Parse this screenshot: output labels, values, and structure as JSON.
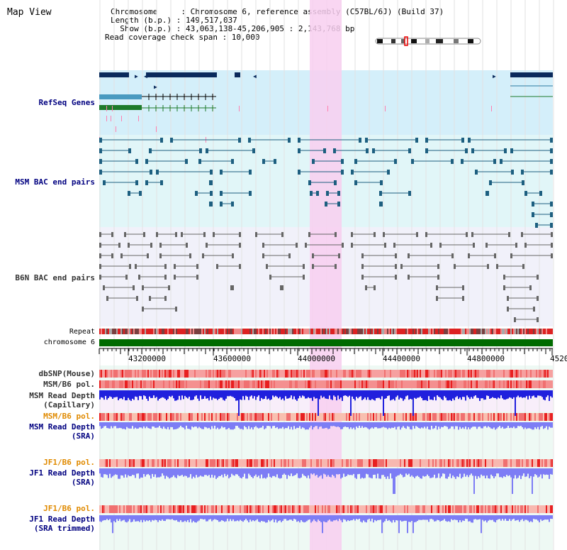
{
  "header": {
    "view_title": "Map View",
    "info_lines": [
      "Chromosome     : Chromosome 6, reference assembly (C57BL/6J) (Build 37)",
      "Length (b.p.) : 149,517,037",
      "  Show (b.p.) : 43,063,138-45,206,905 : 2,143,768 bp",
      "Read coverage check span : 10,000"
    ]
  },
  "tracks": {
    "refseq": "RefSeq Genes",
    "msm_bac": "MSM BAC end pairs",
    "b6n_bac": "B6N BAC end pairs",
    "repeat": "Repeat",
    "chromosome": "chromosome 6",
    "dbsnp": "dbSNP(Mouse)",
    "msm_b6_pol_1": "MSM/B6 pol.",
    "msm_depth_cap_1": "MSM Read Depth",
    "msm_depth_cap_2": "(Capillary)",
    "msm_b6_pol_2": "MSM/B6 pol.",
    "msm_depth_sra_1": "MSM Read Depth",
    "msm_depth_sra_2": "(SRA)",
    "jf1_b6_pol_1": "JF1/B6 pol.",
    "jf1_depth_sra_1": "JF1 Read Depth",
    "jf1_depth_sra_2": "(SRA)",
    "jf1_b6_pol_2": "JF1/B6 pol.",
    "jf1_depth_trim_1": "JF1 Read Depth",
    "jf1_depth_trim_2": "(SRA trimmed)"
  },
  "axis": {
    "ticks": [
      "43200000",
      "43600000",
      "44000000",
      "44400000",
      "44800000",
      "4520"
    ]
  },
  "colors": {
    "label_blue": "#000080",
    "label_orange": "#e08a00",
    "label_black": "#333333",
    "highlight": "#f8cff0",
    "refseq_bg": "#d4effa",
    "msm_bg": "#e1f6f8",
    "b6n_bg": "#f1f1fa",
    "msm_feature": "#1d5f80",
    "b6n_feature": "#666666",
    "chromosome_bar": "#006b00",
    "depth_blue": "#2020dd",
    "depth_violet": "#7d7df5"
  }
}
